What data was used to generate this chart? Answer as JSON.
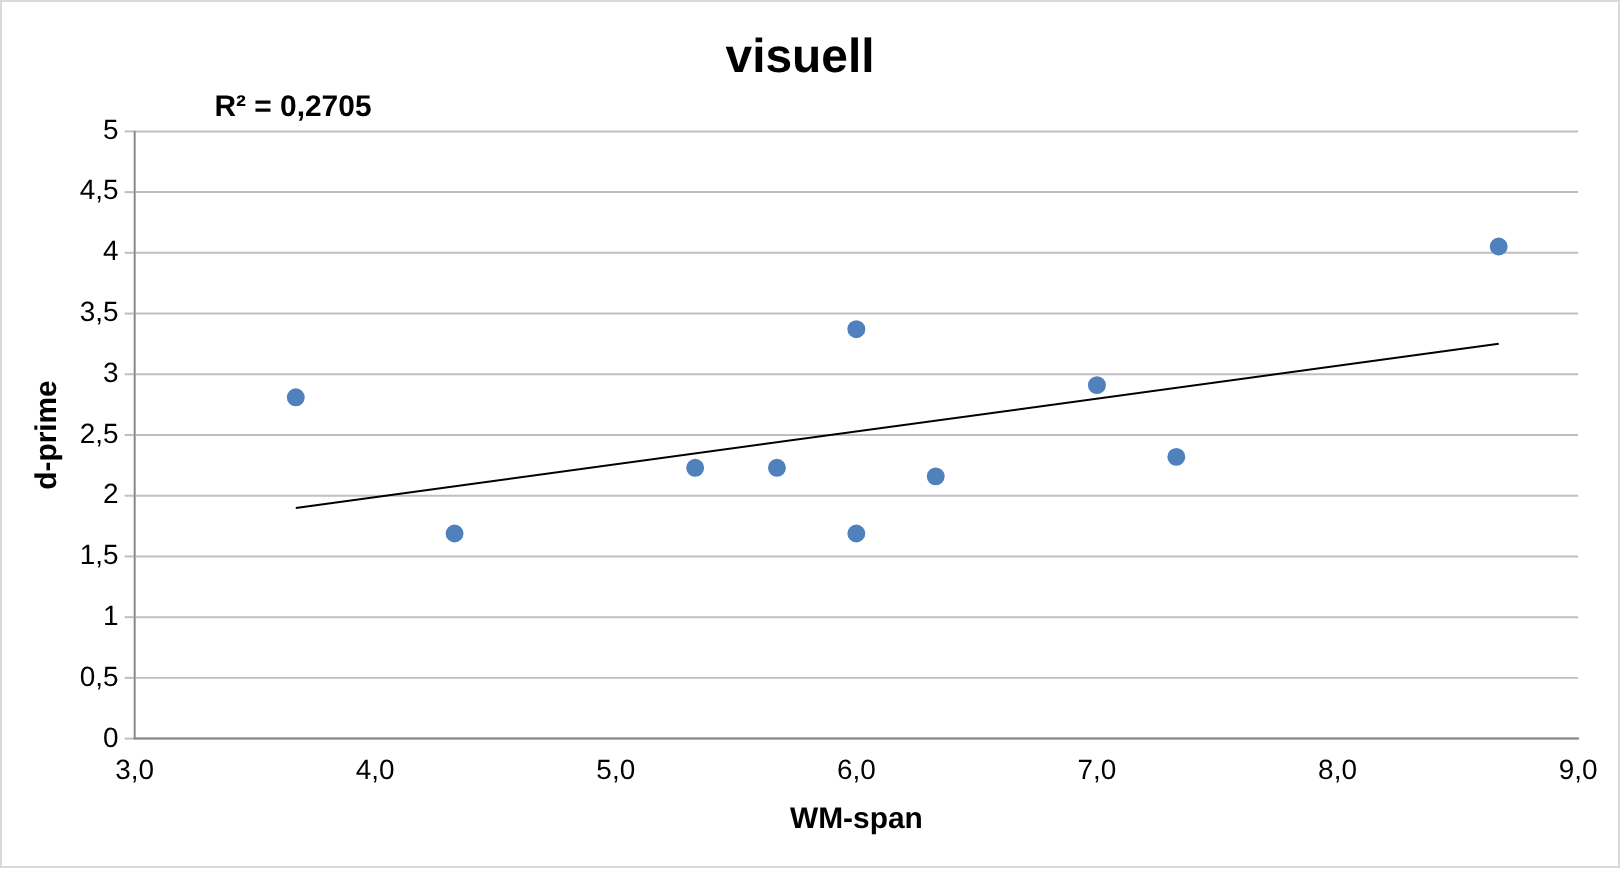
{
  "chart_data": {
    "type": "scatter",
    "title": "visuell",
    "xlabel": "WM-span",
    "ylabel": "d-prime",
    "annotations": [
      "R² = 0,2705"
    ],
    "xlim": [
      3,
      9
    ],
    "xticks": [
      {
        "value": 3,
        "label": "3,0"
      },
      {
        "value": 4,
        "label": "4,0"
      },
      {
        "value": 5,
        "label": "5,0"
      },
      {
        "value": 6,
        "label": "6,0"
      },
      {
        "value": 7,
        "label": "7,0"
      },
      {
        "value": 8,
        "label": "8,0"
      },
      {
        "value": 9,
        "label": "9,0"
      }
    ],
    "ylim": [
      0,
      5
    ],
    "yticks": [
      0,
      {
        "value": 0.5,
        "label": "0,5"
      },
      1,
      {
        "value": 1.5,
        "label": "1,5"
      },
      2,
      {
        "value": 2.5,
        "label": "2,5"
      },
      3,
      {
        "value": 3.5,
        "label": "3,5"
      },
      4,
      {
        "value": 4.5,
        "label": "4,5"
      },
      5
    ],
    "grid": "y",
    "marker": "circle",
    "series": [
      {
        "type": "scatter",
        "color": "#4f81bd",
        "x": [
          3.67,
          4.33,
          5.33,
          5.67,
          6.0,
          6.0,
          6.33,
          7.0,
          7.33,
          8.67
        ],
        "values": [
          2.81,
          1.69,
          2.23,
          2.23,
          3.37,
          1.69,
          2.16,
          2.91,
          2.32,
          4.05
        ]
      },
      {
        "type": "line",
        "color": "#000000",
        "marker": "none",
        "x": [
          3.67,
          8.67
        ],
        "values": [
          1.9,
          3.25
        ]
      }
    ]
  }
}
